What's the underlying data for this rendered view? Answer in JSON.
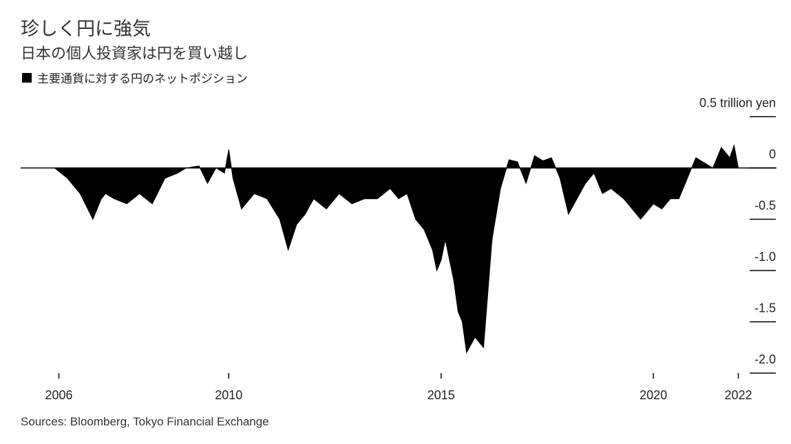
{
  "title": "珍しく円に強気",
  "subtitle": "日本の個人投資家は円を買い越し",
  "legend": [
    {
      "label": "主要通貨に対する円のネットポジション",
      "color": "#000000"
    }
  ],
  "source": "Sources: Bloomberg, Tokyo Financial Exchange",
  "chart_data": {
    "type": "area",
    "title": "珍しく円に強気",
    "subtitle": "日本の個人投資家は円を買い越し",
    "xlabel": "",
    "ylabel": "",
    "y_unit_label": "trillion yen",
    "xlim": [
      2005.1,
      2022.9
    ],
    "ylim": [
      -2.0,
      0.5
    ],
    "grid": false,
    "legend_position": "top-left",
    "color": "#000000",
    "x_ticks": [
      {
        "value": 2006.0,
        "label": "2006"
      },
      {
        "value": 2010.0,
        "label": "2010"
      },
      {
        "value": 2015.0,
        "label": "2015"
      },
      {
        "value": 2020.0,
        "label": "2020"
      },
      {
        "value": 2022.0,
        "label": "2022"
      }
    ],
    "y_ticks": [
      {
        "value": 0.5,
        "label": "0.5 trillion yen"
      },
      {
        "value": 0,
        "label": "0"
      },
      {
        "value": -0.5,
        "label": "-0.5"
      },
      {
        "value": -1.0,
        "label": "-1.0"
      },
      {
        "value": -1.5,
        "label": "-1.5"
      },
      {
        "value": -2.0,
        "label": "-2.0"
      }
    ],
    "series": [
      {
        "name": "主要通貨に対する円のネットポジション",
        "x": [
          2005.9,
          2006.2,
          2006.5,
          2006.8,
          2007.0,
          2007.1,
          2007.3,
          2007.6,
          2007.9,
          2008.2,
          2008.5,
          2008.8,
          2009.0,
          2009.3,
          2009.5,
          2009.7,
          2009.9,
          2010.0,
          2010.1,
          2010.3,
          2010.6,
          2010.9,
          2011.2,
          2011.4,
          2011.6,
          2011.8,
          2012.0,
          2012.3,
          2012.6,
          2012.9,
          2013.2,
          2013.5,
          2013.8,
          2014.0,
          2014.2,
          2014.4,
          2014.6,
          2014.8,
          2014.9,
          2015.0,
          2015.1,
          2015.3,
          2015.4,
          2015.5,
          2015.6,
          2015.8,
          2016.0,
          2016.2,
          2016.4,
          2016.6,
          2016.8,
          2017.0,
          2017.2,
          2017.4,
          2017.6,
          2017.8,
          2018.0,
          2018.2,
          2018.4,
          2018.6,
          2018.8,
          2019.0,
          2019.3,
          2019.5,
          2019.7,
          2020.0,
          2020.2,
          2020.4,
          2020.6,
          2020.8,
          2021.0,
          2021.2,
          2021.4,
          2021.6,
          2021.8,
          2021.9,
          2022.0
        ],
        "values": [
          0.0,
          -0.1,
          -0.25,
          -0.5,
          -0.3,
          -0.25,
          -0.3,
          -0.35,
          -0.25,
          -0.35,
          -0.1,
          -0.05,
          0.0,
          0.02,
          -0.15,
          0.0,
          -0.05,
          0.18,
          -0.1,
          -0.4,
          -0.25,
          -0.3,
          -0.5,
          -0.8,
          -0.55,
          -0.45,
          -0.3,
          -0.4,
          -0.25,
          -0.35,
          -0.3,
          -0.3,
          -0.2,
          -0.3,
          -0.25,
          -0.5,
          -0.6,
          -0.8,
          -1.0,
          -0.9,
          -0.7,
          -1.1,
          -1.4,
          -1.5,
          -1.8,
          -1.65,
          -1.75,
          -0.7,
          -0.2,
          0.08,
          0.06,
          -0.15,
          0.12,
          0.07,
          0.1,
          -0.1,
          -0.45,
          -0.3,
          -0.15,
          -0.05,
          -0.25,
          -0.2,
          -0.3,
          -0.4,
          -0.5,
          -0.35,
          -0.4,
          -0.3,
          -0.3,
          -0.1,
          0.1,
          0.05,
          0.0,
          0.2,
          0.1,
          0.22,
          0.0
        ]
      }
    ]
  }
}
